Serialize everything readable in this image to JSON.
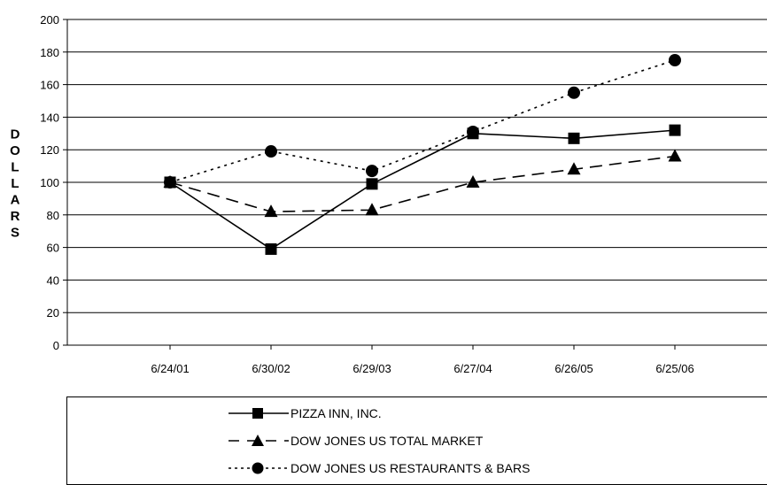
{
  "chart_data": {
    "type": "line",
    "title": "",
    "xlabel": "",
    "ylabel": "DOLLARS",
    "categories": [
      "6/24/01",
      "6/30/02",
      "6/29/03",
      "6/27/04",
      "6/26/05",
      "6/25/06"
    ],
    "ylim": [
      0,
      200
    ],
    "yticks": [
      0,
      20,
      40,
      60,
      80,
      100,
      120,
      140,
      160,
      180,
      200
    ],
    "grid": "horizontal",
    "legend_position": "bottom",
    "series": [
      {
        "name": "PIZZA INN, INC.",
        "values": [
          100,
          59,
          99,
          130,
          127,
          132
        ],
        "marker": "square",
        "line_style": "solid",
        "color": "#000000"
      },
      {
        "name": "DOW JONES US TOTAL MARKET",
        "values": [
          100,
          82,
          83,
          100,
          108,
          116
        ],
        "marker": "triangle",
        "line_style": "dashed",
        "color": "#000000"
      },
      {
        "name": "DOW JONES US RESTAURANTS & BARS",
        "values": [
          100,
          119,
          107,
          131,
          155,
          175
        ],
        "marker": "circle",
        "line_style": "dotted",
        "color": "#000000"
      }
    ]
  }
}
